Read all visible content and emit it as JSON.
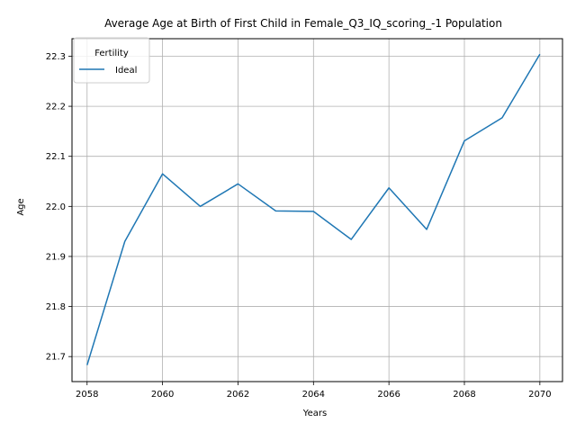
{
  "chart_data": {
    "type": "line",
    "title": "Average Age at Birth of First Child in Female_Q3_IQ_scoring_-1 Population",
    "xlabel": "Years",
    "ylabel": "Age",
    "grid": true,
    "legend": {
      "title": "Fertility",
      "placement": "top-left"
    },
    "xlim": [
      2057.6,
      2070.6
    ],
    "ylim": [
      21.65,
      22.335
    ],
    "x_ticks": [
      2058,
      2060,
      2062,
      2064,
      2066,
      2068,
      2070
    ],
    "y_ticks": [
      21.7,
      21.8,
      21.9,
      22.0,
      22.1,
      22.2,
      22.3
    ],
    "x_tick_labels": [
      "2058",
      "2060",
      "2062",
      "2064",
      "2066",
      "2068",
      "2070"
    ],
    "y_tick_labels": [
      "21.7",
      "21.8",
      "21.9",
      "22.0",
      "22.1",
      "22.2",
      "22.3"
    ],
    "x": [
      2058,
      2059,
      2060,
      2061,
      2062,
      2063,
      2064,
      2065,
      2066,
      2067,
      2068,
      2069,
      2070
    ],
    "series": [
      {
        "name": "Ideal",
        "color": "#1f77b4",
        "values": [
          21.683,
          21.93,
          22.065,
          22.0,
          22.045,
          21.991,
          21.99,
          21.934,
          22.037,
          21.954,
          22.131,
          22.177,
          22.304
        ]
      }
    ]
  }
}
